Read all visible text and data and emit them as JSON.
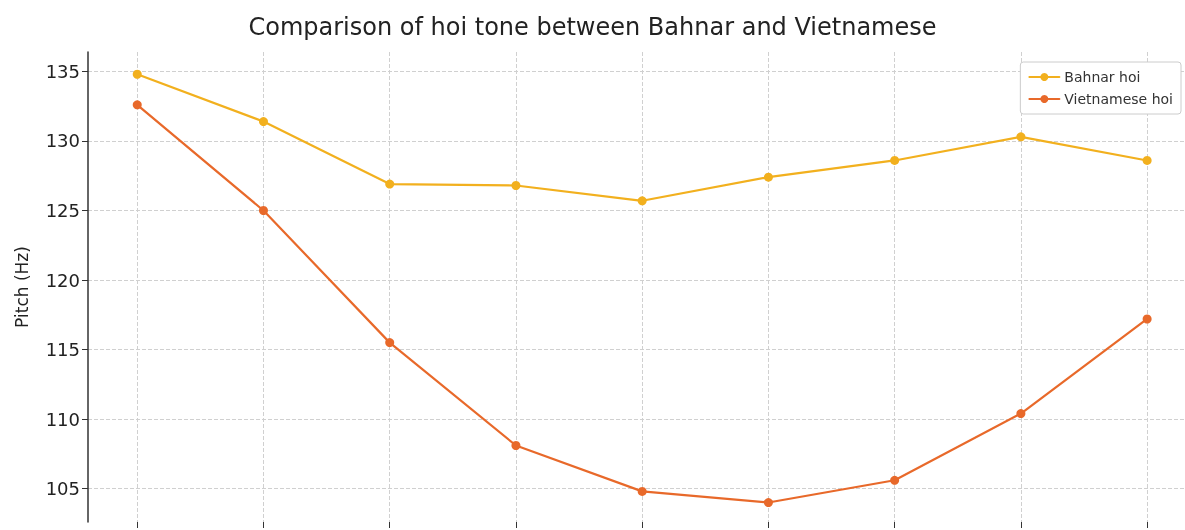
{
  "chart_data": {
    "type": "line",
    "title": "Comparison of hoi tone between Bahnar and Vietnamese",
    "ylabel": "Pitch (Hz)",
    "categories": [
      null,
      null,
      null,
      null,
      null,
      null,
      null,
      null,
      null
    ],
    "series": [
      {
        "name": "Bahnar hoi",
        "color": "#f2b01e",
        "values": [
          134.8,
          131.4,
          126.9,
          126.8,
          125.7,
          127.4,
          128.6,
          130.3,
          128.6
        ]
      },
      {
        "name": "Vietnamese hoi",
        "color": "#e8692a",
        "values": [
          132.6,
          125.0,
          115.5,
          108.1,
          104.8,
          104.0,
          105.6,
          110.4,
          117.2
        ]
      }
    ],
    "ylim": [
      102.6,
      136.4
    ],
    "yticks": [
      105,
      110,
      115,
      120,
      125,
      130,
      135
    ],
    "tick_labels": "y",
    "grid": true,
    "legend": "top right",
    "marker": "circle",
    "line_style": "solid"
  }
}
